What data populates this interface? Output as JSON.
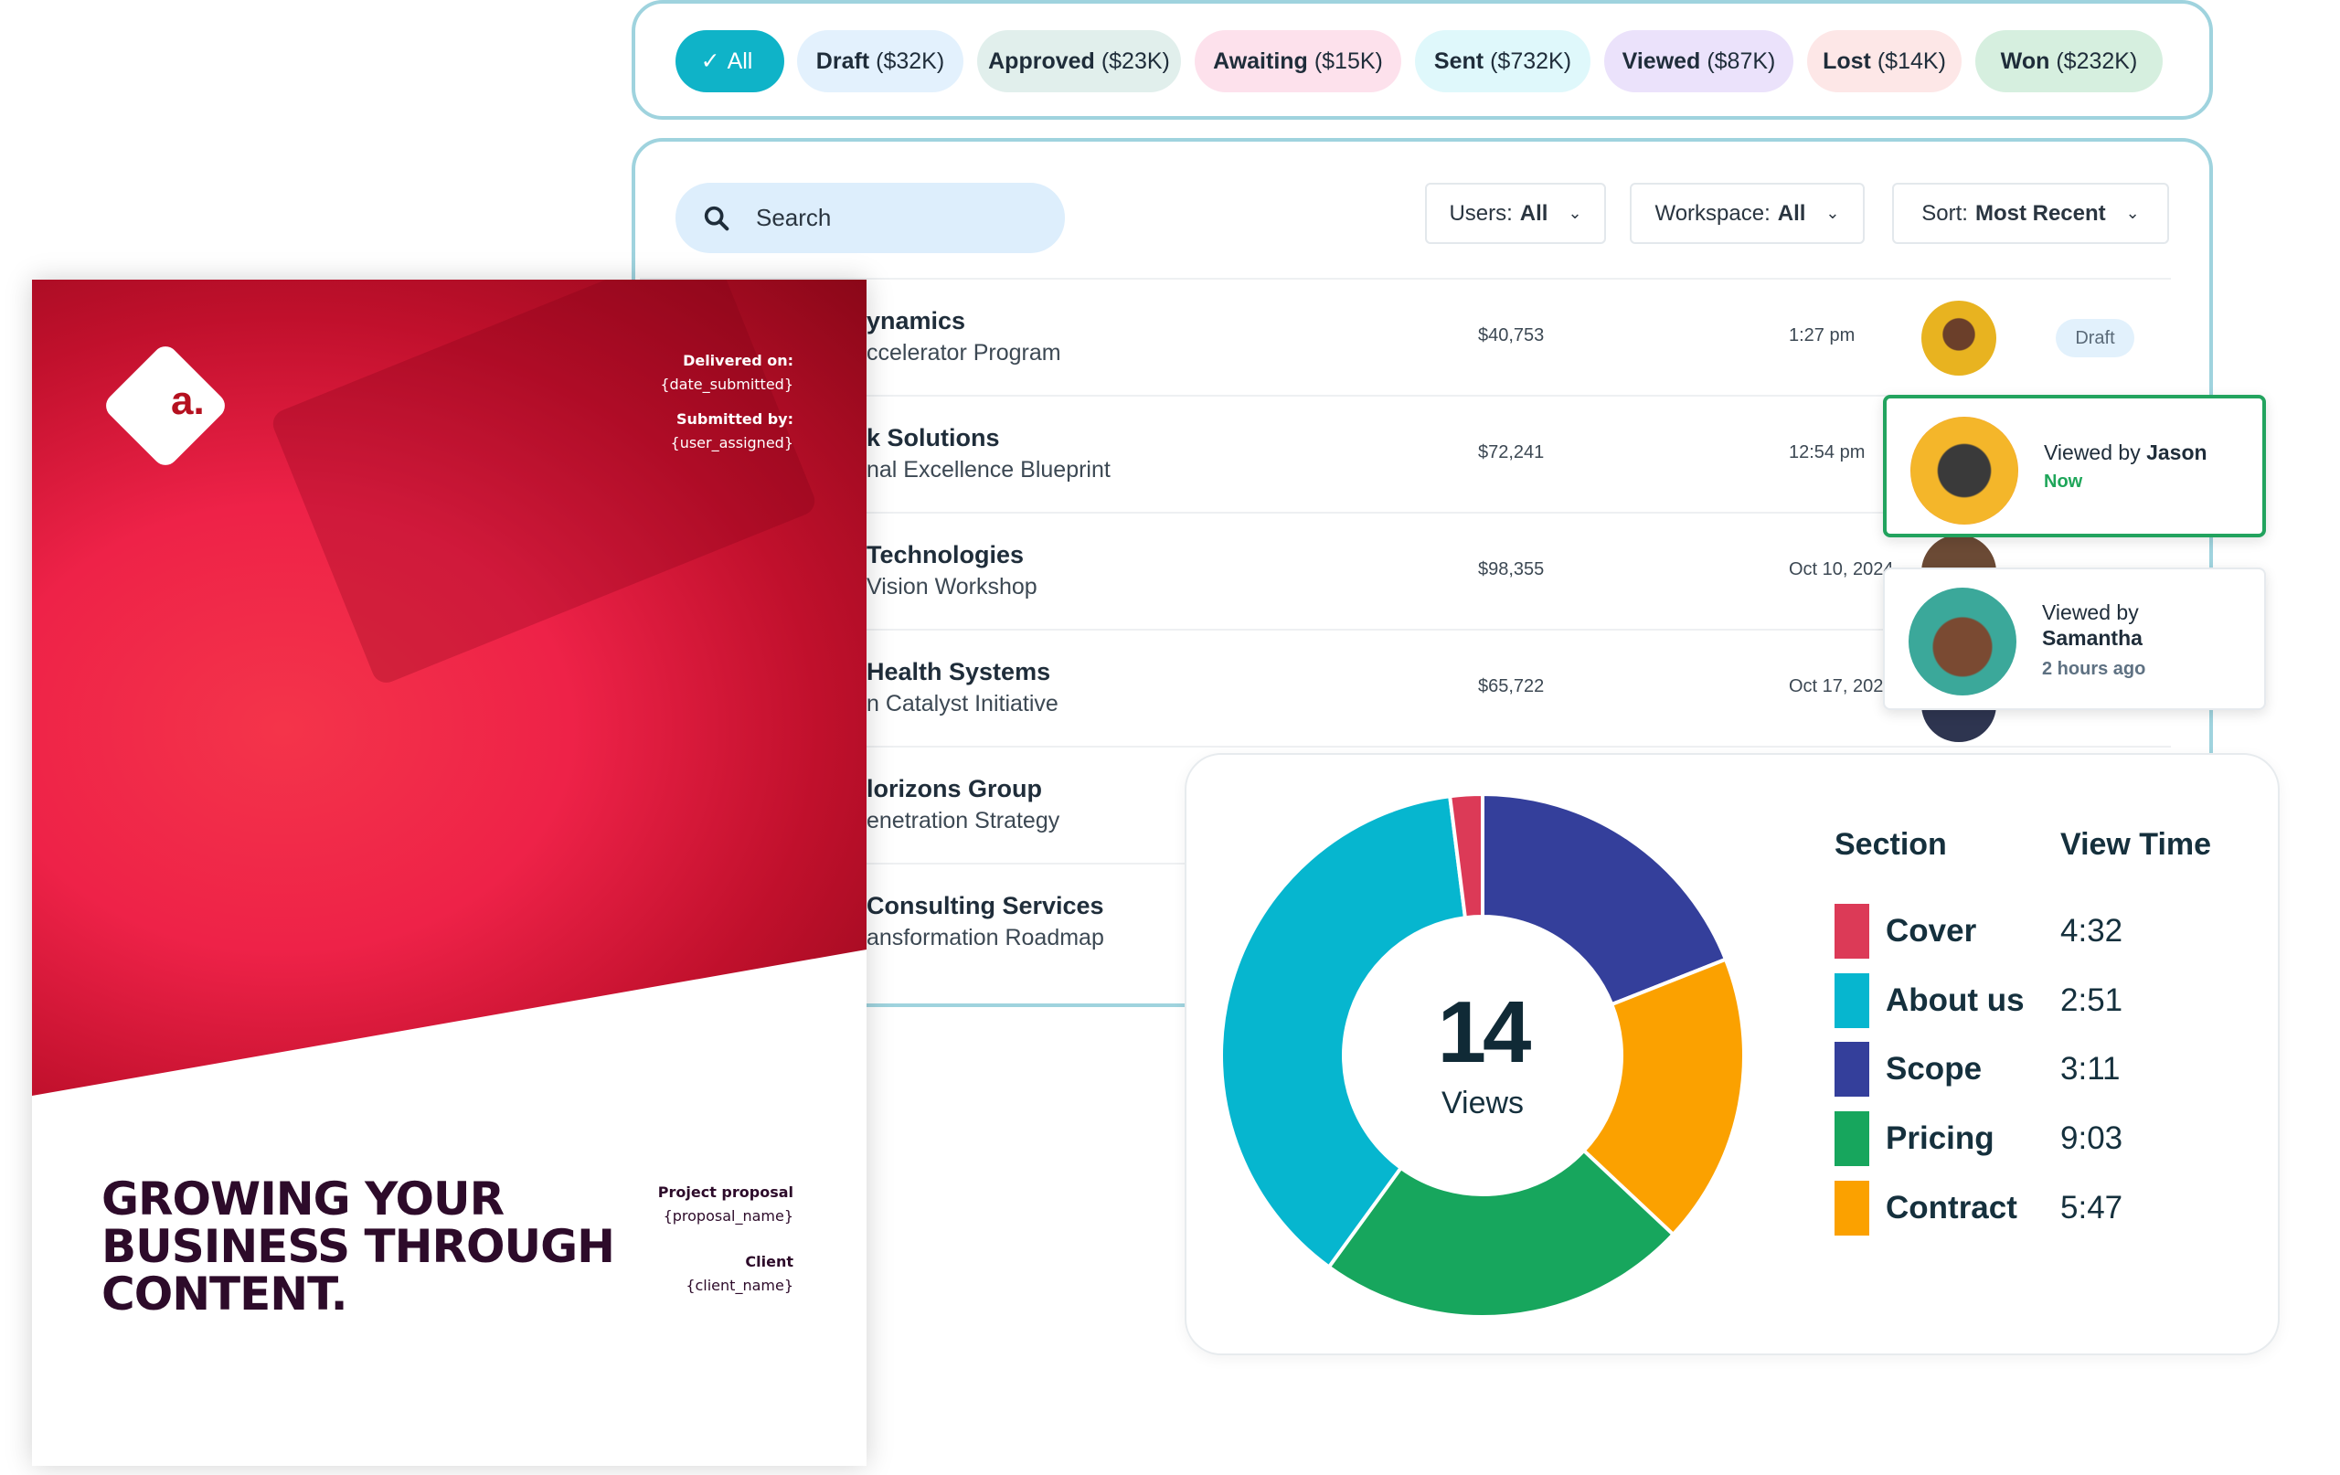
{
  "filters": [
    {
      "label": "All",
      "count": "",
      "bg": "#0fb3c8",
      "color": "#ffffff",
      "active": true
    },
    {
      "label": "Draft",
      "count": "($32K)",
      "bg": "#e3f1fd"
    },
    {
      "label": "Approved",
      "count": "($23K)",
      "bg": "#e1efec"
    },
    {
      "label": "Awaiting",
      "count": "($15K)",
      "bg": "#fde1ec"
    },
    {
      "label": "Sent",
      "count": "($732K)",
      "bg": "#dff8fb"
    },
    {
      "label": "Viewed",
      "count": "($87K)",
      "bg": "#ebe2fb"
    },
    {
      "label": "Lost",
      "count": "($14K)",
      "bg": "#fde7e7"
    },
    {
      "label": "Won",
      "count": "($232K)",
      "bg": "#d6efdf"
    }
  ],
  "search": {
    "placeholder": "Search"
  },
  "dropdowns": {
    "users": {
      "label": "Users:",
      "value": "All"
    },
    "workspace": {
      "label": "Workspace:",
      "value": "All"
    },
    "sort": {
      "label": "Sort:",
      "value": "Most Recent"
    }
  },
  "rows": [
    {
      "client": "ynamics",
      "proposal": "ccelerator Program",
      "amount": "$40,753",
      "time": "1:27 pm",
      "status": "Draft"
    },
    {
      "client": "k Solutions",
      "proposal": "nal Excellence Blueprint",
      "amount": "$72,241",
      "time": "12:54 pm"
    },
    {
      "client": "Technologies",
      "proposal": "Vision Workshop",
      "amount": "$98,355",
      "time": "Oct 10, 2024"
    },
    {
      "client": "Health Systems",
      "proposal": "n Catalyst Initiative",
      "amount": "$65,722",
      "time": "Oct 17, 2024"
    },
    {
      "client": "lorizons Group",
      "proposal": "enetration Strategy"
    },
    {
      "client": "Consulting Services",
      "proposal": "ansformation Roadmap"
    }
  ],
  "popups": {
    "jason": {
      "prefix": "Viewed by",
      "name": "Jason",
      "when": "Now"
    },
    "samantha": {
      "prefix": "Viewed by",
      "name": "Samantha",
      "when": "2 hours ago"
    }
  },
  "document": {
    "logo": "a.",
    "delivered_label": "Delivered on:",
    "delivered_value": "{date_submitted}",
    "submitted_label": "Submitted by:",
    "submitted_value": "{user_assigned}",
    "headline": [
      "GROWING YOUR",
      "BUSINESS THROUGH",
      "CONTENT."
    ],
    "proposal_label": "Project proposal",
    "proposal_value": "{proposal_name}",
    "client_label": "Client",
    "client_value": "{client_name}"
  },
  "chart_data": {
    "type": "pie",
    "center_value": "14",
    "center_label": "Views",
    "legend_headers": {
      "section": "Section",
      "time": "View Time"
    },
    "series": [
      {
        "name": "Cover",
        "view_time": "4:32",
        "share_pct": 2,
        "color": "#dc3a57"
      },
      {
        "name": "About us",
        "view_time": "2:51",
        "share_pct": 38,
        "color": "#06b6cf"
      },
      {
        "name": "Scope",
        "view_time": "3:11",
        "share_pct": 19,
        "color": "#343f9b"
      },
      {
        "name": "Pricing",
        "view_time": "9:03",
        "share_pct": 23,
        "color": "#17a65d"
      },
      {
        "name": "Contract",
        "view_time": "5:47",
        "share_pct": 18,
        "color": "#fba100"
      }
    ],
    "slice_order_clockwise_from_top": [
      "Scope",
      "Contract",
      "Pricing",
      "About us",
      "Cover"
    ]
  }
}
